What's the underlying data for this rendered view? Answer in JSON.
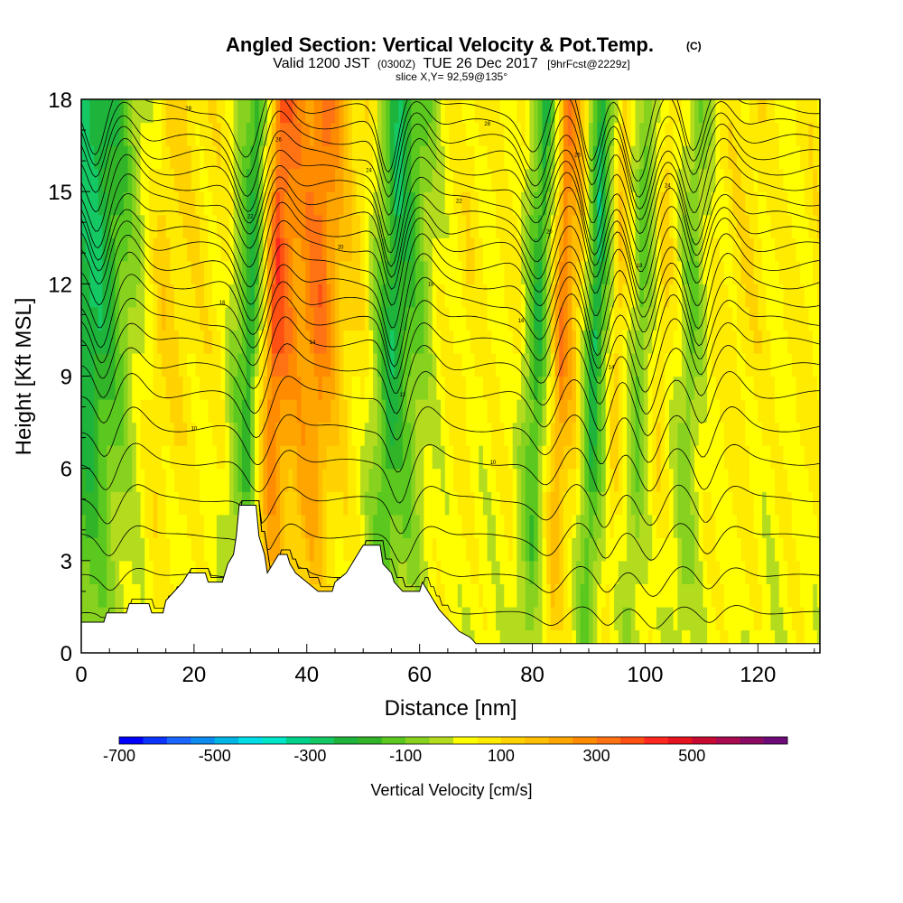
{
  "header": {
    "title": "Angled Section: Vertical Velocity & Pot.Temp.",
    "title_mark": "(C)",
    "line2_a": "Valid 1200 JST",
    "line2_b": "(0300Z)",
    "line2_c": "TUE 26 Dec 2017",
    "line2_d": "[9hrFcst@2229z]",
    "line3": "slice X,Y= 92,59@135°"
  },
  "chart_data": {
    "type": "heatmap",
    "title": "Angled Section: Vertical Velocity & Pot.Temp.",
    "xlabel": "Distance [nm]",
    "ylabel": "Height [Kft MSL]",
    "xlim": [
      0,
      131
    ],
    "ylim": [
      0,
      18
    ],
    "x_ticks": [
      0,
      20,
      40,
      60,
      80,
      100,
      120
    ],
    "y_ticks": [
      0,
      3,
      6,
      9,
      12,
      15,
      18
    ],
    "colorbar": {
      "label": "Vertical Velocity [cm/s]",
      "range": [
        -700,
        700
      ],
      "step": 50,
      "tick_values": [
        -700,
        -500,
        -300,
        -100,
        100,
        300,
        500
      ],
      "colors": [
        "#0000ff",
        "#0d33ff",
        "#1a66ff",
        "#0d8cf0",
        "#00b4e6",
        "#00dde6",
        "#00e6c8",
        "#00d28c",
        "#14c864",
        "#1eb43c",
        "#32b428",
        "#5ac81e",
        "#87d21e",
        "#b4dc1e",
        "#ffff00",
        "#ffeb00",
        "#ffd200",
        "#ffbe00",
        "#ffa500",
        "#ff8c00",
        "#ff7314",
        "#ff5014",
        "#ff281e",
        "#e6141e",
        "#c80a32",
        "#aa0a50",
        "#8c0a64",
        "#6e0a78"
      ]
    },
    "velocity_bands": [
      {
        "x": 2,
        "v": -260
      },
      {
        "x": 5,
        "v": -180
      },
      {
        "x": 9,
        "v": -40
      },
      {
        "x": 14,
        "v": 120
      },
      {
        "x": 20,
        "v": 80
      },
      {
        "x": 25,
        "v": 60
      },
      {
        "x": 30,
        "v": -220
      },
      {
        "x": 34,
        "v": 380
      },
      {
        "x": 38,
        "v": 250
      },
      {
        "x": 42,
        "v": 320
      },
      {
        "x": 46,
        "v": 150
      },
      {
        "x": 50,
        "v": 60
      },
      {
        "x": 55,
        "v": -250
      },
      {
        "x": 59,
        "v": -120
      },
      {
        "x": 63,
        "v": 20
      },
      {
        "x": 68,
        "v": 80
      },
      {
        "x": 72,
        "v": 40
      },
      {
        "x": 77,
        "v": 60
      },
      {
        "x": 81,
        "v": -220
      },
      {
        "x": 85,
        "v": 300
      },
      {
        "x": 88,
        "v": 120
      },
      {
        "x": 91,
        "v": -280
      },
      {
        "x": 95,
        "v": 150
      },
      {
        "x": 99,
        "v": -130
      },
      {
        "x": 103,
        "v": 120
      },
      {
        "x": 108,
        "v": -110
      },
      {
        "x": 112,
        "v": 60
      },
      {
        "x": 118,
        "v": 90
      },
      {
        "x": 123,
        "v": 40
      },
      {
        "x": 128,
        "v": 70
      }
    ],
    "terrain": [
      {
        "x": 0,
        "h": 1.0
      },
      {
        "x": 4,
        "h": 1.0
      },
      {
        "x": 4.5,
        "h": 1.3
      },
      {
        "x": 8,
        "h": 1.3
      },
      {
        "x": 8.5,
        "h": 1.6
      },
      {
        "x": 12,
        "h": 1.6
      },
      {
        "x": 12.5,
        "h": 1.3
      },
      {
        "x": 14.5,
        "h": 1.3
      },
      {
        "x": 15,
        "h": 1.7
      },
      {
        "x": 16.5,
        "h": 2.0
      },
      {
        "x": 18,
        "h": 2.3
      },
      {
        "x": 19,
        "h": 2.6
      },
      {
        "x": 22,
        "h": 2.6
      },
      {
        "x": 22.5,
        "h": 2.3
      },
      {
        "x": 25,
        "h": 2.3
      },
      {
        "x": 26,
        "h": 2.9
      },
      {
        "x": 27,
        "h": 3.2
      },
      {
        "x": 27.5,
        "h": 3.8
      },
      {
        "x": 28,
        "h": 4.8
      },
      {
        "x": 31,
        "h": 4.8
      },
      {
        "x": 31.5,
        "h": 3.8
      },
      {
        "x": 32.5,
        "h": 3.2
      },
      {
        "x": 33,
        "h": 2.6
      },
      {
        "x": 34,
        "h": 2.9
      },
      {
        "x": 35,
        "h": 3.2
      },
      {
        "x": 36.5,
        "h": 3.2
      },
      {
        "x": 37,
        "h": 2.9
      },
      {
        "x": 38,
        "h": 2.6
      },
      {
        "x": 40,
        "h": 2.3
      },
      {
        "x": 42,
        "h": 2.0
      },
      {
        "x": 44.5,
        "h": 2.0
      },
      {
        "x": 45,
        "h": 2.3
      },
      {
        "x": 47,
        "h": 2.6
      },
      {
        "x": 48,
        "h": 2.9
      },
      {
        "x": 49,
        "h": 3.2
      },
      {
        "x": 50,
        "h": 3.5
      },
      {
        "x": 53,
        "h": 3.5
      },
      {
        "x": 53.5,
        "h": 2.9
      },
      {
        "x": 55,
        "h": 2.6
      },
      {
        "x": 55.5,
        "h": 2.3
      },
      {
        "x": 57,
        "h": 2.0
      },
      {
        "x": 60,
        "h": 2.0
      },
      {
        "x": 60.5,
        "h": 2.3
      },
      {
        "x": 61.5,
        "h": 2.0
      },
      {
        "x": 62.5,
        "h": 1.7
      },
      {
        "x": 63.5,
        "h": 1.4
      },
      {
        "x": 65,
        "h": 1.1
      },
      {
        "x": 67,
        "h": 0.7
      },
      {
        "x": 69,
        "h": 0.5
      },
      {
        "x": 70,
        "h": 0.3
      },
      {
        "x": 131,
        "h": 0.3
      }
    ],
    "theta_levels": [
      {
        "h": 1.3,
        "lbl": ""
      },
      {
        "h": 2.5,
        "lbl": ""
      },
      {
        "h": 3.8,
        "lbl": ""
      },
      {
        "h": 5.0,
        "lbl": ""
      },
      {
        "h": 6.2,
        "lbl": "10"
      },
      {
        "h": 7.3,
        "lbl": "10"
      },
      {
        "h": 8.4,
        "lbl": "12"
      },
      {
        "h": 9.3,
        "lbl": "14"
      },
      {
        "h": 10.1,
        "lbl": "14"
      },
      {
        "h": 10.8,
        "lbl": "16"
      },
      {
        "h": 11.4,
        "lbl": "16"
      },
      {
        "h": 12.0,
        "lbl": "18"
      },
      {
        "h": 12.6,
        "lbl": "18"
      },
      {
        "h": 13.2,
        "lbl": "20"
      },
      {
        "h": 13.7,
        "lbl": "20"
      },
      {
        "h": 14.2,
        "lbl": "22"
      },
      {
        "h": 14.7,
        "lbl": "22"
      },
      {
        "h": 15.2,
        "lbl": "24"
      },
      {
        "h": 15.7,
        "lbl": "24"
      },
      {
        "h": 16.2,
        "lbl": "26"
      },
      {
        "h": 16.7,
        "lbl": "26"
      },
      {
        "h": 17.2,
        "lbl": "28"
      },
      {
        "h": 17.7,
        "lbl": "28"
      }
    ]
  }
}
